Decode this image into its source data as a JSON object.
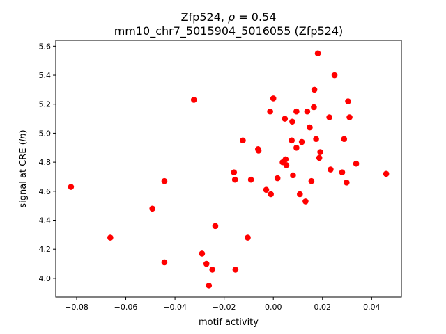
{
  "chart_data": {
    "type": "scatter",
    "title_line1_main": "Zfp524, ",
    "title_line1_rho": "ρ",
    "title_line1_rest": " = 0.54",
    "title_line2": "mm10_chr7_5015904_5016055 (Zfp524)",
    "xlabel": "motif activity",
    "ylabel_main": "signal at CRE (",
    "ylabel_italic": "ln",
    "ylabel_end": ")",
    "xlim": [
      -0.0885,
      0.0521
    ],
    "ylim": [
      3.87,
      5.64
    ],
    "xticks": [
      -0.08,
      -0.06,
      -0.04,
      -0.02,
      0.0,
      0.02,
      0.04
    ],
    "xtick_labels": [
      "−0.08",
      "−0.06",
      "−0.04",
      "−0.02",
      "0.00",
      "0.02",
      "0.04"
    ],
    "yticks": [
      4.0,
      4.2,
      4.4,
      4.6,
      4.8,
      5.0,
      5.2,
      5.4,
      5.6
    ],
    "ytick_labels": [
      "4.0",
      "4.2",
      "4.4",
      "4.6",
      "4.8",
      "5.0",
      "5.2",
      "5.4",
      "5.6"
    ],
    "grid": false,
    "legend": "none",
    "marker_color": "#ff0000",
    "points": [
      {
        "x": -0.0823,
        "y": 4.63
      },
      {
        "x": -0.0663,
        "y": 4.28
      },
      {
        "x": -0.0492,
        "y": 4.48
      },
      {
        "x": -0.0443,
        "y": 4.67
      },
      {
        "x": -0.0443,
        "y": 4.11
      },
      {
        "x": -0.0323,
        "y": 5.23
      },
      {
        "x": -0.029,
        "y": 4.17
      },
      {
        "x": -0.0272,
        "y": 4.1
      },
      {
        "x": -0.0262,
        "y": 3.95
      },
      {
        "x": -0.0248,
        "y": 4.06
      },
      {
        "x": -0.0236,
        "y": 4.36
      },
      {
        "x": -0.016,
        "y": 4.73
      },
      {
        "x": -0.0156,
        "y": 4.68
      },
      {
        "x": -0.0154,
        "y": 4.06
      },
      {
        "x": -0.0124,
        "y": 4.95
      },
      {
        "x": -0.0104,
        "y": 4.28
      },
      {
        "x": -0.0091,
        "y": 4.68
      },
      {
        "x": -0.0062,
        "y": 4.89
      },
      {
        "x": -0.006,
        "y": 4.88
      },
      {
        "x": -0.0029,
        "y": 4.61
      },
      {
        "x": -0.0013,
        "y": 5.15
      },
      {
        "x": -0.001,
        "y": 4.58
      },
      {
        "x": 0.0,
        "y": 5.24
      },
      {
        "x": 0.0017,
        "y": 4.69
      },
      {
        "x": 0.0038,
        "y": 4.8
      },
      {
        "x": 0.0047,
        "y": 5.1
      },
      {
        "x": 0.005,
        "y": 4.82
      },
      {
        "x": 0.0053,
        "y": 4.78
      },
      {
        "x": 0.0075,
        "y": 4.95
      },
      {
        "x": 0.0077,
        "y": 5.08
      },
      {
        "x": 0.008,
        "y": 4.71
      },
      {
        "x": 0.0094,
        "y": 4.9
      },
      {
        "x": 0.0094,
        "y": 5.15
      },
      {
        "x": 0.0108,
        "y": 4.58
      },
      {
        "x": 0.0116,
        "y": 4.94
      },
      {
        "x": 0.0131,
        "y": 4.53
      },
      {
        "x": 0.0138,
        "y": 5.15
      },
      {
        "x": 0.0148,
        "y": 5.04
      },
      {
        "x": 0.0155,
        "y": 4.67
      },
      {
        "x": 0.0165,
        "y": 5.18
      },
      {
        "x": 0.0167,
        "y": 5.3
      },
      {
        "x": 0.0174,
        "y": 4.96
      },
      {
        "x": 0.0181,
        "y": 5.55
      },
      {
        "x": 0.0187,
        "y": 4.83
      },
      {
        "x": 0.0191,
        "y": 4.87
      },
      {
        "x": 0.0228,
        "y": 5.11
      },
      {
        "x": 0.0233,
        "y": 4.75
      },
      {
        "x": 0.0249,
        "y": 5.4
      },
      {
        "x": 0.028,
        "y": 4.73
      },
      {
        "x": 0.0288,
        "y": 4.96
      },
      {
        "x": 0.0298,
        "y": 4.66
      },
      {
        "x": 0.0304,
        "y": 5.22
      },
      {
        "x": 0.031,
        "y": 5.11
      },
      {
        "x": 0.0337,
        "y": 4.79
      },
      {
        "x": 0.0459,
        "y": 4.72
      }
    ]
  }
}
